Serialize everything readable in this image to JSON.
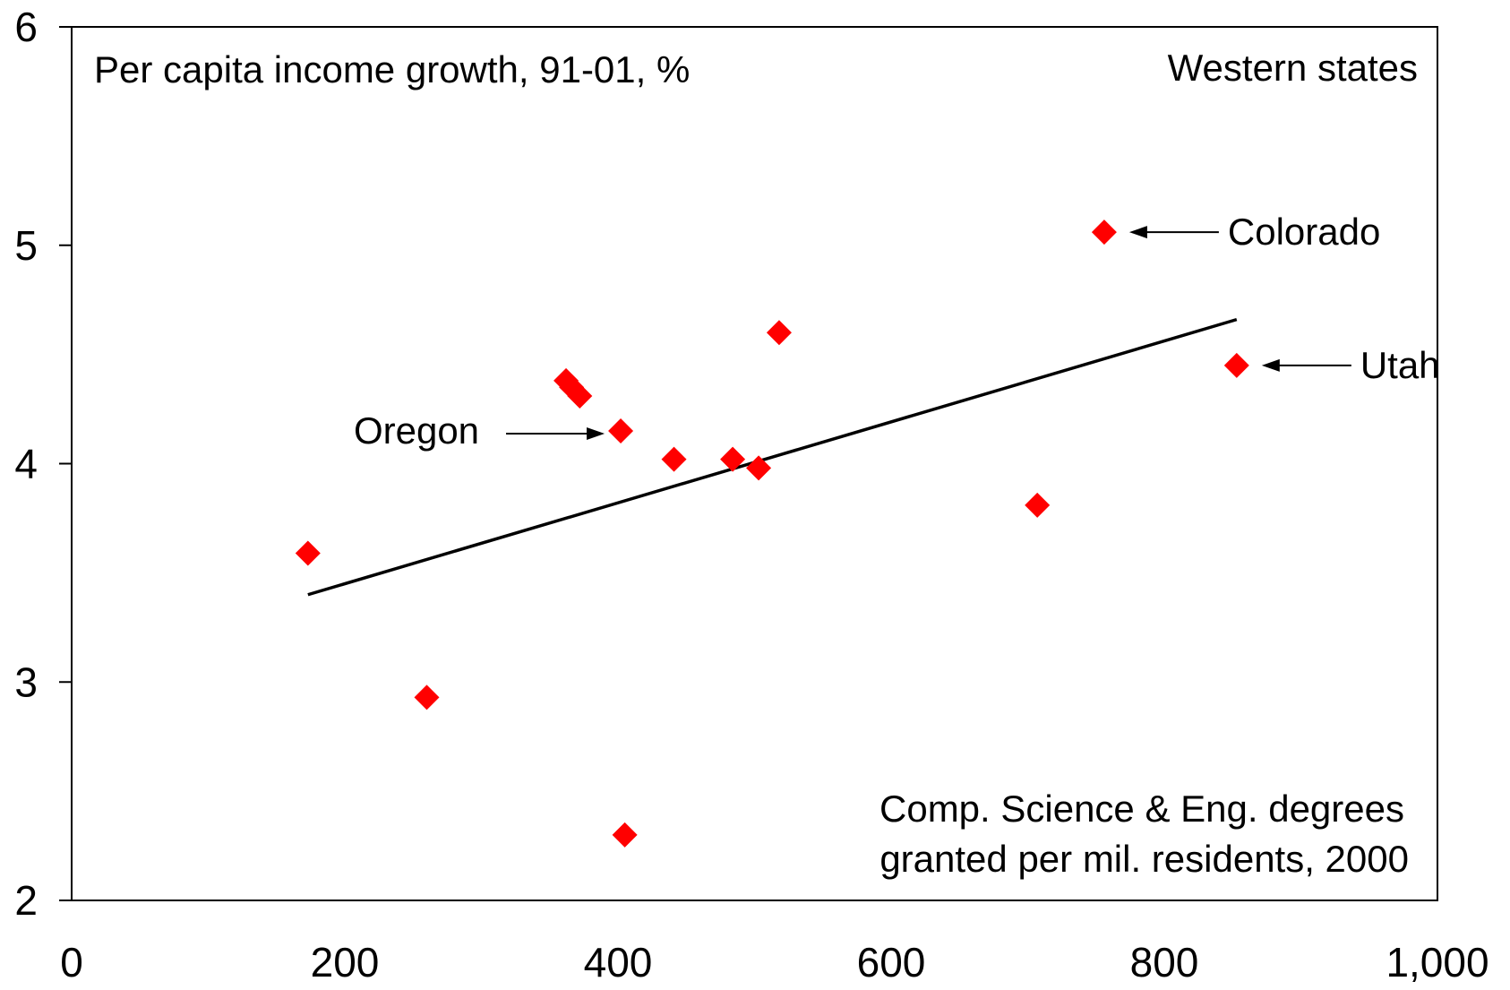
{
  "chart_data": {
    "type": "scatter",
    "title": "Western states",
    "ylabel": "Per capita income growth, 91-01, %",
    "xlabel": "Comp. Science & Eng. degrees granted per mil. residents, 2000",
    "xlabel_lines": [
      "Comp. Science & Eng. degrees",
      "granted per mil. residents, 2000"
    ],
    "xlim": [
      0,
      1000
    ],
    "ylim": [
      2,
      6
    ],
    "x_ticks": [
      0,
      200,
      400,
      600,
      800,
      1000
    ],
    "x_tick_labels": [
      "0",
      "200",
      "400",
      "600",
      "800",
      "1,000"
    ],
    "y_ticks": [
      2,
      3,
      4,
      5,
      6
    ],
    "y_tick_labels": [
      "2",
      "3",
      "4",
      "5",
      "6"
    ],
    "grid": false,
    "marker_color": "#ff0000",
    "trend_color": "#000000",
    "points": [
      {
        "x": 173,
        "y": 3.59
      },
      {
        "x": 260,
        "y": 2.93
      },
      {
        "x": 362,
        "y": 4.38
      },
      {
        "x": 366,
        "y": 4.35
      },
      {
        "x": 372,
        "y": 4.31
      },
      {
        "x": 402,
        "y": 4.15
      },
      {
        "x": 405,
        "y": 2.3
      },
      {
        "x": 441,
        "y": 4.02
      },
      {
        "x": 484,
        "y": 4.02
      },
      {
        "x": 503,
        "y": 3.98
      },
      {
        "x": 518,
        "y": 4.6
      },
      {
        "x": 707,
        "y": 3.81
      },
      {
        "x": 756,
        "y": 5.06
      },
      {
        "x": 853,
        "y": 4.45
      }
    ],
    "trendline": {
      "x": [
        173,
        853
      ],
      "y": [
        3.4,
        4.66
      ]
    },
    "annotations": [
      {
        "label": "Colorado",
        "x": 756,
        "y": 5.06,
        "side": "right"
      },
      {
        "label": "Utah",
        "x": 853,
        "y": 4.45,
        "side": "right"
      },
      {
        "label": "Oregon",
        "x": 402,
        "y": 4.15,
        "side": "left"
      }
    ]
  }
}
